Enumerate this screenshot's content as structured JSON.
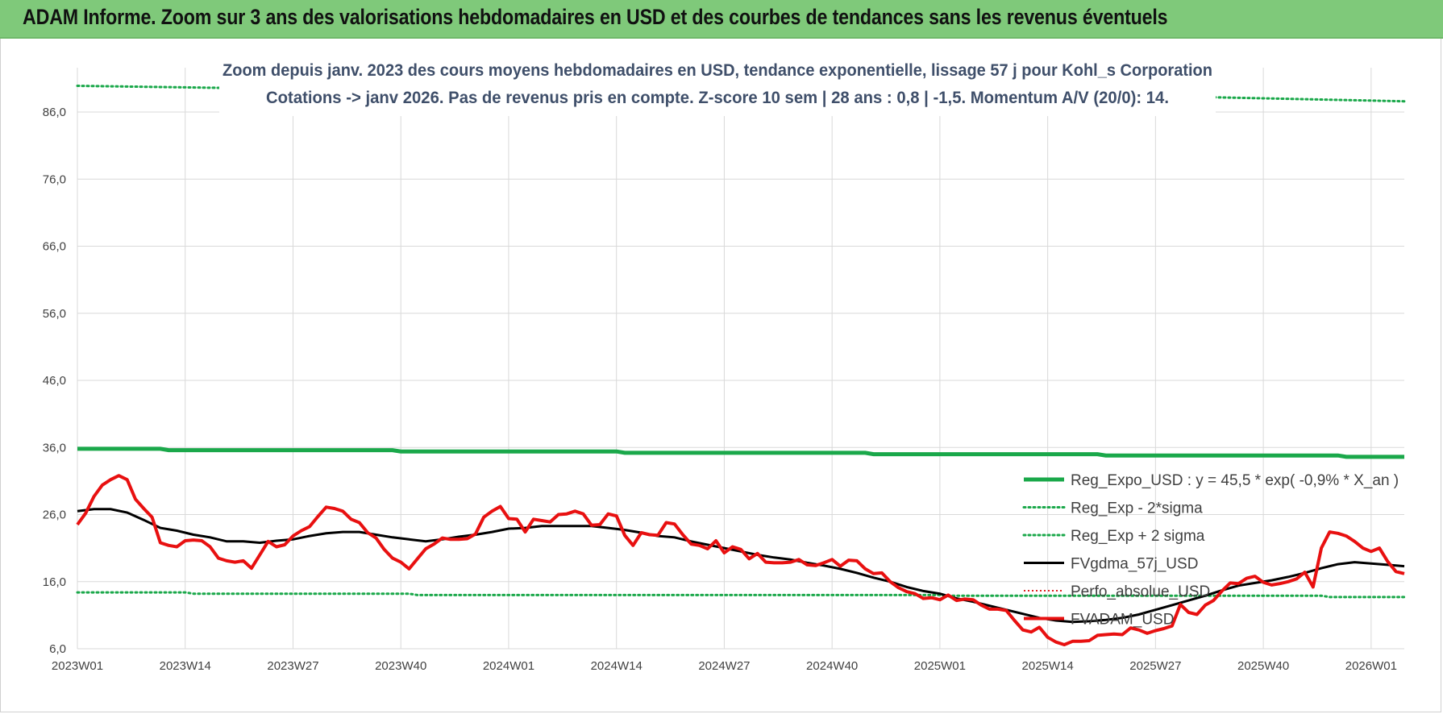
{
  "banner": {
    "title": "ADAM Informe. Zoom sur 3 ans des valorisations hebdomadaires en USD et des courbes de tendances sans les revenus éventuels"
  },
  "colors": {
    "banner_bg": "#7fc97a",
    "reg_expo": "#1aa84a",
    "sigma": "#1aa84a",
    "fvgdma": "#000000",
    "perfo": "#e02020",
    "fvadam": "#e81010",
    "grid": "#d9d9d9"
  },
  "chart_data": {
    "type": "line",
    "title": "Zoom depuis janv. 2023 des cours moyens hebdomadaires en USD, tendance exponentielle, lissage 57 j pour Kohl_s Corporation",
    "subtitle": "Cotations -> janv 2026. Pas de revenus pris en compte. Z-score 10 sem | 28 ans : 0,8 | -1,5. Momentum A/V (20/0): 14.",
    "xlabel": "",
    "ylabel": "",
    "ylim": [
      6,
      86
    ],
    "y_ticks": [
      "86,0",
      "76,0",
      "66,0",
      "56,0",
      "46,0",
      "36,0",
      "26,0",
      "16,0",
      "6,0"
    ],
    "x_ticks": [
      {
        "label": "2023W01",
        "week": 0
      },
      {
        "label": "2023W14",
        "week": 13
      },
      {
        "label": "2023W27",
        "week": 26
      },
      {
        "label": "2023W40",
        "week": 39
      },
      {
        "label": "2024W01",
        "week": 52
      },
      {
        "label": "2024W14",
        "week": 65
      },
      {
        "label": "2024W27",
        "week": 78
      },
      {
        "label": "2024W40",
        "week": 91
      },
      {
        "label": "2025W01",
        "week": 104
      },
      {
        "label": "2025W14",
        "week": 117
      },
      {
        "label": "2025W27",
        "week": 130
      },
      {
        "label": "2025W40",
        "week": 143
      },
      {
        "label": "2026W01",
        "week": 156
      }
    ],
    "x_max_week": 160,
    "grid": true,
    "legend_position": "bottom-right",
    "series": [
      {
        "name": "Reg_Expo_USD : y = 45,5 * exp( -0,9% *  X_an )",
        "style": "solid-thick",
        "points": [
          [
            0,
            35.8
          ],
          [
            10,
            35.8
          ],
          [
            11,
            35.6
          ],
          [
            38,
            35.6
          ],
          [
            39,
            35.4
          ],
          [
            65,
            35.4
          ],
          [
            66,
            35.2
          ],
          [
            95,
            35.2
          ],
          [
            96,
            35.0
          ],
          [
            123,
            35.0
          ],
          [
            124,
            34.8
          ],
          [
            152,
            34.8
          ],
          [
            153,
            34.6
          ],
          [
            160,
            34.6
          ]
        ]
      },
      {
        "name": "Reg_Exp - 2*sigma",
        "style": "dotted",
        "points": [
          [
            0,
            14.4
          ],
          [
            13,
            14.4
          ],
          [
            14,
            14.2
          ],
          [
            40,
            14.2
          ],
          [
            41,
            14.0
          ],
          [
            104,
            14.0
          ],
          [
            105,
            13.9
          ],
          [
            150,
            13.9
          ],
          [
            151,
            13.7
          ],
          [
            160,
            13.7
          ]
        ]
      },
      {
        "name": "Reg_Exp + 2 sigma",
        "style": "dotted",
        "points": [
          [
            0,
            89.9
          ],
          [
            17,
            89.6
          ],
          [
            137,
            88.2
          ],
          [
            160,
            87.6
          ]
        ]
      },
      {
        "name": "FVgdma_57j_USD",
        "style": "solid",
        "points": [
          [
            0,
            26.5
          ],
          [
            2,
            26.8
          ],
          [
            4,
            26.8
          ],
          [
            6,
            26.3
          ],
          [
            8,
            25.2
          ],
          [
            10,
            24.0
          ],
          [
            12,
            23.6
          ],
          [
            14,
            23.0
          ],
          [
            16,
            22.6
          ],
          [
            18,
            22.0
          ],
          [
            20,
            22.0
          ],
          [
            22,
            21.8
          ],
          [
            24,
            22.1
          ],
          [
            26,
            22.3
          ],
          [
            28,
            22.8
          ],
          [
            30,
            23.2
          ],
          [
            32,
            23.4
          ],
          [
            34,
            23.4
          ],
          [
            36,
            23.0
          ],
          [
            38,
            22.6
          ],
          [
            40,
            22.3
          ],
          [
            42,
            22.0
          ],
          [
            44,
            22.3
          ],
          [
            46,
            22.7
          ],
          [
            48,
            23.0
          ],
          [
            50,
            23.4
          ],
          [
            52,
            23.9
          ],
          [
            54,
            24.0
          ],
          [
            56,
            24.3
          ],
          [
            58,
            24.3
          ],
          [
            60,
            24.3
          ],
          [
            62,
            24.3
          ],
          [
            64,
            24.0
          ],
          [
            66,
            23.7
          ],
          [
            68,
            23.3
          ],
          [
            70,
            22.8
          ],
          [
            72,
            22.6
          ],
          [
            74,
            22.0
          ],
          [
            76,
            21.5
          ],
          [
            78,
            21.0
          ],
          [
            80,
            20.5
          ],
          [
            82,
            20.0
          ],
          [
            84,
            19.6
          ],
          [
            86,
            19.3
          ],
          [
            88,
            18.8
          ],
          [
            90,
            18.4
          ],
          [
            92,
            17.9
          ],
          [
            94,
            17.3
          ],
          [
            96,
            16.6
          ],
          [
            98,
            16.0
          ],
          [
            100,
            15.2
          ],
          [
            102,
            14.6
          ],
          [
            104,
            14.2
          ],
          [
            106,
            13.5
          ],
          [
            108,
            13.0
          ],
          [
            110,
            12.4
          ],
          [
            112,
            11.8
          ],
          [
            114,
            11.2
          ],
          [
            116,
            10.6
          ],
          [
            118,
            10.2
          ],
          [
            120,
            10.0
          ],
          [
            122,
            10.1
          ],
          [
            124,
            10.3
          ],
          [
            126,
            10.6
          ],
          [
            128,
            11.1
          ],
          [
            130,
            11.8
          ],
          [
            132,
            12.5
          ],
          [
            134,
            13.2
          ],
          [
            136,
            13.9
          ],
          [
            138,
            14.7
          ],
          [
            140,
            15.4
          ],
          [
            142,
            15.8
          ],
          [
            144,
            16.2
          ],
          [
            146,
            16.7
          ],
          [
            148,
            17.3
          ],
          [
            150,
            18.0
          ],
          [
            152,
            18.6
          ],
          [
            154,
            18.9
          ],
          [
            156,
            18.7
          ],
          [
            158,
            18.5
          ],
          [
            160,
            18.3
          ]
        ]
      },
      {
        "name": "Perfo_absolue_USD",
        "style": "dotted-red",
        "points": []
      },
      {
        "name": "FVADAM_USD",
        "style": "solid-thick-red",
        "points": [
          [
            0,
            24.5
          ],
          [
            1,
            26.2
          ],
          [
            2,
            28.7
          ],
          [
            3,
            30.4
          ],
          [
            4,
            31.2
          ],
          [
            5,
            31.8
          ],
          [
            6,
            31.2
          ],
          [
            7,
            28.3
          ],
          [
            8,
            26.9
          ],
          [
            9,
            25.6
          ],
          [
            10,
            21.8
          ],
          [
            11,
            21.4
          ],
          [
            12,
            21.2
          ],
          [
            13,
            22.1
          ],
          [
            14,
            22.2
          ],
          [
            15,
            22.1
          ],
          [
            16,
            21.2
          ],
          [
            17,
            19.5
          ],
          [
            18,
            19.1
          ],
          [
            19,
            18.9
          ],
          [
            20,
            19.1
          ],
          [
            21,
            18.0
          ],
          [
            22,
            20.0
          ],
          [
            23,
            22.0
          ],
          [
            24,
            21.2
          ],
          [
            25,
            21.5
          ],
          [
            26,
            22.8
          ],
          [
            27,
            23.6
          ],
          [
            28,
            24.2
          ],
          [
            29,
            25.7
          ],
          [
            30,
            27.1
          ],
          [
            31,
            26.9
          ],
          [
            32,
            26.5
          ],
          [
            33,
            25.3
          ],
          [
            34,
            24.8
          ],
          [
            35,
            23.3
          ],
          [
            36,
            22.5
          ],
          [
            37,
            20.8
          ],
          [
            38,
            19.5
          ],
          [
            39,
            18.9
          ],
          [
            40,
            17.9
          ],
          [
            41,
            19.4
          ],
          [
            42,
            20.9
          ],
          [
            43,
            21.6
          ],
          [
            44,
            22.5
          ],
          [
            45,
            22.3
          ],
          [
            46,
            22.3
          ],
          [
            47,
            22.4
          ],
          [
            48,
            23.1
          ],
          [
            49,
            25.6
          ],
          [
            50,
            26.5
          ],
          [
            51,
            27.2
          ],
          [
            52,
            25.4
          ],
          [
            53,
            25.3
          ],
          [
            54,
            23.4
          ],
          [
            55,
            25.3
          ],
          [
            56,
            25.1
          ],
          [
            57,
            24.9
          ],
          [
            58,
            26.0
          ],
          [
            59,
            26.1
          ],
          [
            60,
            26.5
          ],
          [
            61,
            26.1
          ],
          [
            62,
            24.4
          ],
          [
            63,
            24.5
          ],
          [
            64,
            26.1
          ],
          [
            65,
            25.8
          ],
          [
            66,
            22.9
          ],
          [
            67,
            21.4
          ],
          [
            68,
            23.3
          ],
          [
            69,
            23.0
          ],
          [
            70,
            22.9
          ],
          [
            71,
            24.8
          ],
          [
            72,
            24.6
          ],
          [
            73,
            23.0
          ],
          [
            74,
            21.6
          ],
          [
            75,
            21.4
          ],
          [
            76,
            20.9
          ],
          [
            77,
            22.1
          ],
          [
            78,
            20.3
          ],
          [
            79,
            21.2
          ],
          [
            80,
            20.8
          ],
          [
            81,
            19.4
          ],
          [
            82,
            20.2
          ],
          [
            83,
            18.9
          ],
          [
            84,
            18.8
          ],
          [
            85,
            18.8
          ],
          [
            86,
            18.9
          ],
          [
            87,
            19.3
          ],
          [
            88,
            18.5
          ],
          [
            89,
            18.4
          ],
          [
            90,
            18.8
          ],
          [
            91,
            19.3
          ],
          [
            92,
            18.3
          ],
          [
            93,
            19.2
          ],
          [
            94,
            19.1
          ],
          [
            95,
            17.9
          ],
          [
            96,
            17.2
          ],
          [
            97,
            17.3
          ],
          [
            98,
            16.0
          ],
          [
            99,
            15.1
          ],
          [
            100,
            14.5
          ],
          [
            101,
            14.2
          ],
          [
            102,
            13.5
          ],
          [
            103,
            13.6
          ],
          [
            104,
            13.3
          ],
          [
            105,
            14.0
          ],
          [
            106,
            13.2
          ],
          [
            107,
            13.4
          ],
          [
            108,
            13.3
          ],
          [
            109,
            12.5
          ],
          [
            110,
            11.9
          ],
          [
            111,
            11.9
          ],
          [
            112,
            11.7
          ],
          [
            113,
            10.2
          ],
          [
            114,
            8.8
          ],
          [
            115,
            8.5
          ],
          [
            116,
            9.2
          ],
          [
            117,
            7.7
          ],
          [
            118,
            7.0
          ],
          [
            119,
            6.6
          ],
          [
            120,
            7.1
          ],
          [
            121,
            7.1
          ],
          [
            122,
            7.2
          ],
          [
            123,
            8.0
          ],
          [
            124,
            8.1
          ],
          [
            125,
            8.2
          ],
          [
            126,
            8.1
          ],
          [
            127,
            9.1
          ],
          [
            128,
            8.8
          ],
          [
            129,
            8.3
          ],
          [
            130,
            8.7
          ],
          [
            131,
            9.0
          ],
          [
            132,
            9.4
          ],
          [
            133,
            12.6
          ],
          [
            134,
            11.4
          ],
          [
            135,
            11.1
          ],
          [
            136,
            12.5
          ],
          [
            137,
            13.2
          ],
          [
            138,
            14.6
          ],
          [
            139,
            15.8
          ],
          [
            140,
            15.7
          ],
          [
            141,
            16.5
          ],
          [
            142,
            16.8
          ],
          [
            143,
            15.9
          ],
          [
            144,
            15.5
          ],
          [
            145,
            15.7
          ],
          [
            146,
            16.0
          ],
          [
            147,
            16.4
          ],
          [
            148,
            17.4
          ],
          [
            149,
            15.2
          ],
          [
            150,
            21.0
          ],
          [
            151,
            23.4
          ],
          [
            152,
            23.2
          ],
          [
            153,
            22.8
          ],
          [
            154,
            22.0
          ],
          [
            155,
            21.0
          ],
          [
            156,
            20.5
          ],
          [
            157,
            21.0
          ],
          [
            158,
            19.0
          ],
          [
            159,
            17.5
          ],
          [
            160,
            17.2
          ]
        ]
      }
    ]
  }
}
